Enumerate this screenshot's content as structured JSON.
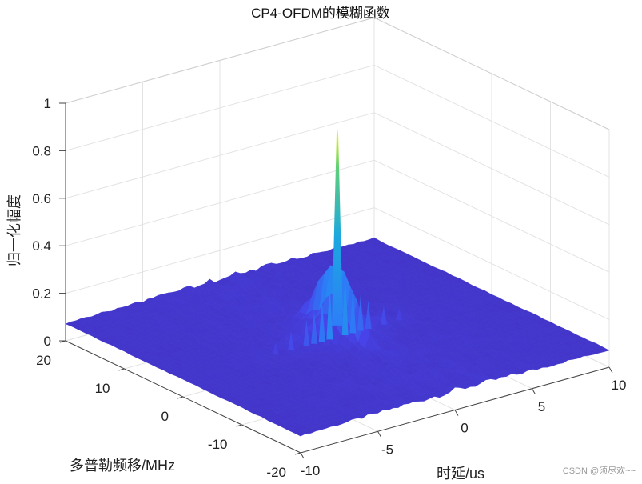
{
  "chart_data": {
    "type": "surface",
    "title": "CP4-OFDM的模糊函数",
    "xlabel": "时延/us",
    "ylabel": "多普勒频移/MHz",
    "zlabel": "归一化幅度",
    "xlim": [
      -10,
      10
    ],
    "ylim": [
      -20,
      20
    ],
    "zlim": [
      0,
      1
    ],
    "x_ticks": [
      "-10",
      "-5",
      "0",
      "5",
      "10"
    ],
    "y_ticks": [
      "-20",
      "-10",
      "0",
      "10",
      "20"
    ],
    "z_ticks": [
      "0",
      "0.2",
      "0.4",
      "0.6",
      "0.8",
      "1"
    ],
    "x_tick_values": [
      -10,
      -5,
      0,
      5,
      10
    ],
    "y_tick_values": [
      -20,
      -10,
      0,
      10,
      20
    ],
    "z_tick_values": [
      0,
      0.2,
      0.4,
      0.6,
      0.8,
      1
    ],
    "grid": true,
    "colormap": "parula",
    "colormap_stops": [
      "#3e26a8",
      "#4743e8",
      "#2c7ef7",
      "#1ca8df",
      "#1fc8a8",
      "#7ccd5c",
      "#e0c53a",
      "#f9fb0e"
    ],
    "peak": {
      "x": 0,
      "y": 0,
      "z": 0.95
    },
    "floor_level": 0.07,
    "sidelobes": [
      {
        "x": 0.5,
        "y": 0,
        "z": 0.32
      },
      {
        "x": -0.5,
        "y": 0,
        "z": 0.3
      },
      {
        "x": 1.0,
        "y": 0,
        "z": 0.26
      },
      {
        "x": -1.0,
        "y": 0,
        "z": 0.25
      },
      {
        "x": 1.5,
        "y": 0,
        "z": 0.22
      },
      {
        "x": -1.5,
        "y": 0,
        "z": 0.21
      },
      {
        "x": 2.0,
        "y": 0,
        "z": 0.19
      },
      {
        "x": -2.0,
        "y": 0,
        "z": 0.18
      },
      {
        "x": 3.0,
        "y": 0,
        "z": 0.15
      },
      {
        "x": -3.0,
        "y": 0,
        "z": 0.15
      },
      {
        "x": 4.0,
        "y": 0,
        "z": 0.12
      },
      {
        "x": -4.0,
        "y": 0,
        "z": 0.12
      }
    ]
  },
  "watermark": "CSDN @须尽欢~~"
}
